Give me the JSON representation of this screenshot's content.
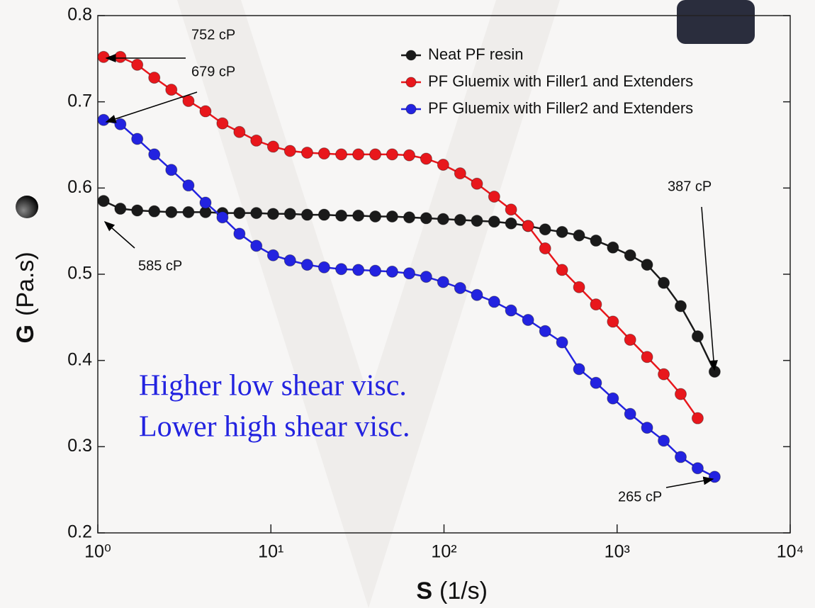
{
  "chart_data": {
    "type": "line",
    "x_label": "S",
    "x_unit": "(1/s)",
    "y_label": "G",
    "y_unit": "(Pa.s)",
    "x": [
      1.08,
      1.35,
      1.69,
      2.12,
      2.66,
      3.34,
      4.19,
      5.25,
      6.58,
      8.24,
      10.3,
      12.9,
      16.2,
      20.3,
      25.5,
      32.0,
      40.1,
      50.2,
      63.0,
      78.9,
      98.9,
      124,
      155,
      195,
      244,
      306,
      384,
      481,
      603,
      755,
      946,
      1190,
      1490,
      1860,
      2330,
      2920,
      3660
    ],
    "series": [
      {
        "name": "Neat PF resin",
        "color": "#1a1a1a",
        "values": [
          0.585,
          0.576,
          0.574,
          0.573,
          0.572,
          0.572,
          0.572,
          0.571,
          0.571,
          0.571,
          0.57,
          0.57,
          0.569,
          0.569,
          0.568,
          0.568,
          0.567,
          0.567,
          0.566,
          0.565,
          0.564,
          0.563,
          0.562,
          0.561,
          0.559,
          0.556,
          0.552,
          0.549,
          0.545,
          0.539,
          0.531,
          0.522,
          0.511,
          0.49,
          0.463,
          0.428,
          0.387
        ]
      },
      {
        "name": "PF Gluemix with Filler1 and Extenders",
        "color": "#e8171c",
        "values": [
          0.752,
          0.752,
          0.743,
          0.728,
          0.714,
          0.701,
          0.689,
          0.675,
          0.665,
          0.655,
          0.648,
          0.643,
          0.641,
          0.64,
          0.639,
          0.639,
          0.639,
          0.639,
          0.638,
          0.634,
          0.627,
          0.617,
          0.605,
          0.59,
          0.575,
          0.556,
          0.53,
          0.505,
          0.485,
          0.465,
          0.445,
          0.424,
          0.404,
          0.384,
          0.361,
          0.333,
          null
        ]
      },
      {
        "name": "PF Gluemix with Filler2 and Extenders",
        "color": "#2323e0",
        "values": [
          0.679,
          0.674,
          0.657,
          0.639,
          0.621,
          0.603,
          0.583,
          0.566,
          0.547,
          0.533,
          0.522,
          0.516,
          0.511,
          0.508,
          0.506,
          0.505,
          0.504,
          0.503,
          0.501,
          0.497,
          0.491,
          0.484,
          0.476,
          0.468,
          0.458,
          0.447,
          0.434,
          0.421,
          0.39,
          0.374,
          0.356,
          0.338,
          0.322,
          0.307,
          0.288,
          0.275,
          0.265
        ]
      }
    ],
    "xlog": true,
    "xlim": [
      1,
      10000
    ],
    "xticks": [
      {
        "value": 1,
        "label": "10⁰"
      },
      {
        "value": 10,
        "label": "10¹"
      },
      {
        "value": 100,
        "label": "10²"
      },
      {
        "value": 1000,
        "label": "10³"
      },
      {
        "value": 10000,
        "label": "10⁴"
      }
    ],
    "ylim": [
      0.2,
      0.8
    ],
    "yticks": [
      0.2,
      0.3,
      0.4,
      0.5,
      0.6,
      0.7,
      0.8
    ],
    "legend": "upper right",
    "annotations": [
      "752 cP",
      "679 cP",
      "585 cP",
      "387 cP",
      "265 cP"
    ],
    "notes": [
      "Higher low shear visc.",
      "Lower high shear visc."
    ]
  }
}
